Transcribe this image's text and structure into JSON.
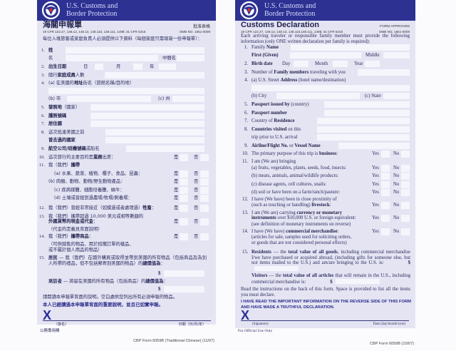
{
  "colors": {
    "header": "#2d3192",
    "body": "#e4e4f3",
    "text": "#2b2b5e",
    "signature_x": "#2a2f9a"
  },
  "left": {
    "agency": [
      "U.S. Customs and",
      "Border Protection"
    ],
    "title": "海關申報單",
    "approved": "批准表格",
    "cfr": "19 CFR 122.27, 148.12, 148.13, 148.110, 148.111, 1498; 31 CFR 5316",
    "omb": "OMB NO. 1651-0009",
    "intro": "每位入境旅客或家庭負責人必須提供以下資料（每個家庭只需填寫一份申報單）：",
    "yes": "是",
    "no": "否",
    "rows": [
      {
        "num": "1.",
        "parts": [
          "",
          "姓"
        ]
      },
      {
        "num": "",
        "parts": [
          "名"
        ],
        "extra": [
          "中間名"
        ]
      },
      {
        "num": "2.",
        "parts": [
          "",
          "出生日期"
        ],
        "extra": [
          "日",
          "月",
          "年"
        ]
      },
      {
        "num": "3.",
        "parts": [
          "隨行",
          "家庭成員",
          "人數"
        ]
      },
      {
        "num": "4.",
        "parts": [
          "(a) 在美國的",
          "地址",
          "街名（旅館名稱/目的地）"
        ]
      },
      {
        "num": "",
        "parts": [
          ""
        ]
      },
      {
        "num": "",
        "parts": [
          "(b) 市"
        ],
        "extra": [
          "(c) 州"
        ]
      },
      {
        "num": "5.",
        "parts": [
          "",
          "發照地",
          "（國家）"
        ]
      },
      {
        "num": "6.",
        "parts": [
          "",
          "護照號碼"
        ]
      },
      {
        "num": "7.",
        "parts": [
          "",
          "居住國"
        ]
      },
      {
        "num": "8.",
        "parts": [
          "這次抵達美國之前"
        ]
      },
      {
        "num": "",
        "parts": [
          "",
          "曾去過的國家"
        ]
      },
      {
        "num": "9.",
        "parts": [
          "",
          "航空公司/班機號碼",
          "或船名"
        ]
      },
      {
        "num": "10.",
        "parts": [
          "這次旅行的主要目的是",
          "業務",
          "出差："
        ],
        "yn": true
      },
      {
        "num": "11.",
        "parts": [
          "我（我們）",
          "攜帶"
        ]
      },
      {
        "num": "",
        "parts": [
          "(a) 水果、蔬菜、植物、種子、食品、昆蟲："
        ],
        "yn": true
      },
      {
        "num": "",
        "parts": [
          "(b) 肉類、動物、動物/野生動物產品："
        ],
        "yn": true
      },
      {
        "num": "",
        "parts": [
          "(c) 疾病媒體、細胞培養體、蝸牛："
        ],
        "yn": true
      },
      {
        "num": "",
        "parts": [
          "(d) 土壤或曾經到過農場/牧場/飼養場："
        ],
        "yn": true
      },
      {
        "num": "12.",
        "parts": [
          "我（我們）曾經非常接近（如摸過或者處理過）",
          "牲畜",
          "："
        ],
        "yn": true
      },
      {
        "num": "13.",
        "parts": [
          "我（我們）攜帶超過 10,000 美元或相等數額的"
        ]
      },
      {
        "num": "",
        "parts": [
          "",
          "外國貨幣的現金或代金",
          "："
        ],
        "yn": true
      },
      {
        "num": "",
        "parts": [
          "（代金的定義見背面說明）"
        ]
      },
      {
        "num": "14.",
        "parts": [
          "我（我們）",
          "攜帶商品",
          "："
        ],
        "yn": true
      },
      {
        "num": "",
        "parts": [
          "（可供銷售的物品、用於招攬訂單的樣品、"
        ]
      },
      {
        "num": "",
        "parts": [
          "或不屬於個人用品的物品）"
        ]
      }
    ],
    "q15_num": "15.",
    "residents": [
      "",
      "居民",
      " — 我（我們）在國外購買或取得並帶到美國的所有物品（包括商品及為別人所帶的禮品，但不包括郵寄到美國的物品）的",
      "總價值為",
      "："
    ],
    "visitors": [
      "",
      "來訪者",
      " — 將留在美國的所有物品（包括商品）的",
      "總價值為",
      "："
    ],
    "dollar": "$",
    "instructions": "請閱讀本申報單背面的說明。空白處供您列出所有必須申報的物品。",
    "declaration": "本人已經讀過本申報單背面的重要說明，並且已如實申報。",
    "signature_mark": "X",
    "signature_label": "（簽名）",
    "date_label": "日期（日/月/年）",
    "official": "公務專用欄",
    "footer": "CBP Form 6059B (Traditional Chinese) (11/07)"
  },
  "right": {
    "agency": [
      "U.S. Customs and",
      "Border Protection"
    ],
    "title": "Customs Declaration",
    "approved": "FORM APPROVED",
    "cfr": "19 CFR 122.27, 148.12, 148.13, 148.110,148.111, 1498; 31 CFR 5316",
    "omb": "OMB NO. 1651-0009",
    "intro": "Each arriving traveler or responsible family member must provide the following information (only ONE written declaration per family is required):",
    "yes": "Yes",
    "no": "No",
    "rows": [
      {
        "num": "1.",
        "parts": [
          "Family ",
          "Name"
        ]
      },
      {
        "num": "",
        "parts": [
          "",
          "First (Given)"
        ],
        "extra": [
          "Middle"
        ]
      },
      {
        "num": "2.",
        "parts": [
          "",
          "Birth date"
        ],
        "extra": [
          "Day",
          "Month",
          "Year"
        ]
      },
      {
        "num": "3.",
        "parts": [
          "Number of ",
          "Family members",
          " traveling with you"
        ]
      },
      {
        "num": "4.",
        "parts": [
          "(a) U.S. Street ",
          "Address",
          " (hotel name/destination)"
        ]
      },
      {
        "num": "",
        "parts": [
          ""
        ]
      },
      {
        "num": "",
        "parts": [
          "(b) City"
        ],
        "extra": [
          "(c) State"
        ]
      },
      {
        "num": "5.",
        "parts": [
          "",
          "Passport issued by",
          " (country)"
        ]
      },
      {
        "num": "6.",
        "parts": [
          "",
          "Passport number"
        ]
      },
      {
        "num": "7.",
        "parts": [
          "Country of ",
          "Residence"
        ]
      },
      {
        "num": "8.",
        "parts": [
          "",
          "Countries visited",
          " on this"
        ]
      },
      {
        "num": "",
        "parts": [
          "trip prior to U.S. arrival"
        ]
      },
      {
        "num": "9.",
        "parts": [
          "",
          "Airline/Flight No.",
          " or ",
          "Vessel Name"
        ]
      },
      {
        "num": "10.",
        "parts": [
          "The primary purpose of this trip is ",
          "business",
          ":"
        ],
        "yn": true
      },
      {
        "num": "11.",
        "parts": [
          "I am (We are) bringing"
        ]
      },
      {
        "num": "",
        "parts": [
          "(a) fruits, vegetables, plants, seeds, food, insects:"
        ],
        "yn": true
      },
      {
        "num": "",
        "parts": [
          "(b) meats, animals, animal/wildlife products:"
        ],
        "yn": true
      },
      {
        "num": "",
        "parts": [
          "(c) disease agents, cell cultures, snails:"
        ],
        "yn": true
      },
      {
        "num": "",
        "parts": [
          "(d) soil or have been on a farm/ranch/pasture:"
        ],
        "yn": true
      },
      {
        "num": "12.",
        "parts": [
          "I have (We have) been in close proximity of"
        ]
      },
      {
        "num": "",
        "parts": [
          "(such as touching or handling) ",
          "livestock",
          ":"
        ],
        "yn": true
      },
      {
        "num": "13.",
        "parts": [
          "I am (We are) carrying ",
          "currency or monetary"
        ]
      },
      {
        "num": "",
        "parts": [
          "",
          "instruments",
          " over $10,000 U.S. or foreign equivalent:"
        ],
        "yn": true
      },
      {
        "num": "",
        "parts": [
          "(see definition of monetary instruments on reverse)"
        ]
      },
      {
        "num": "14.",
        "parts": [
          "I have (We have) ",
          "commercial merchandise",
          ":"
        ],
        "yn": true
      },
      {
        "num": "",
        "parts": [
          "(articles for sale, samples used for soliciting orders,"
        ]
      },
      {
        "num": "",
        "parts": [
          "or goods that are not considered personal effects)"
        ]
      }
    ],
    "q15_num": "15.",
    "residents": [
      "",
      "Residents",
      " — the ",
      "total value of all goods",
      ", including commercial merchandise I/we have purchased or acquired abroad, (including gifts for someone else, but not items mailed to the U.S.) and am/are bringing to the U.S. is:"
    ],
    "visitors": [
      "",
      "Visitors",
      " — the ",
      "total value of all articles",
      " that will remain in the U.S., including commercial merchandise is:"
    ],
    "dollar": "$",
    "instructions": "Read the instructions on the back of this form. Space is provided to list all the items you must declare.",
    "declaration": "I HAVE READ THE IMPORTANT INFORMATION ON THE REVERSE SIDE OF THIS FORM AND HAVE MADE A TRUTHFUL DECLARATION.",
    "signature_mark": "X",
    "signature_label": "(Signature)",
    "date_label": "Date (day/month/year)",
    "official": "For Official Use Only",
    "footer": "CBP Form 6059B (10/07)"
  }
}
